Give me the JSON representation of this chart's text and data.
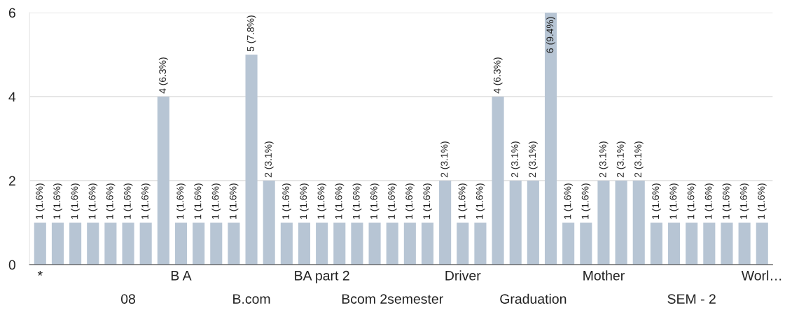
{
  "chart_data": {
    "type": "bar",
    "color": "#b7c5d4",
    "categories": [
      "*",
      null,
      null,
      null,
      null,
      "08",
      null,
      null,
      "B A",
      null,
      null,
      null,
      "B.com",
      null,
      null,
      null,
      "BA part 2",
      null,
      null,
      null,
      "Bcom 2semester",
      null,
      null,
      null,
      "Driver",
      null,
      null,
      null,
      "Graduation",
      null,
      null,
      null,
      "Mother",
      null,
      null,
      null,
      null,
      "SEM - 2",
      null,
      null,
      null,
      "Worl…"
    ],
    "values": [
      1,
      1,
      1,
      1,
      1,
      1,
      1,
      4,
      1,
      1,
      1,
      1,
      5,
      2,
      1,
      1,
      1,
      1,
      1,
      1,
      1,
      1,
      1,
      2,
      1,
      1,
      4,
      2,
      2,
      6,
      1,
      1,
      2,
      2,
      2,
      1,
      1,
      1,
      1,
      1,
      1,
      1
    ],
    "value_labels": [
      "1 (1.6%)",
      "1 (1.6%)",
      "1 (1.6%)",
      "1 (1.6%)",
      "1 (1.6%)",
      "1 (1.6%)",
      "1 (1.6%)",
      "4 (6.3%)",
      "1 (1.6%)",
      "1 (1.6%)",
      "1 (1.6%)",
      "1 (1.6%)",
      "5 (7.8%)",
      "2 (3.1%)",
      "1 (1.6%)",
      "1 (1.6%)",
      "1 (1.6%)",
      "1 (1.6%)",
      "1 (1.6%)",
      "1 (1.6%)",
      "1 (1.6%)",
      "1 (1.6%)",
      "1 (1.6%)",
      "2 (3.1%)",
      "1 (1.6%)",
      "1 (1.6%)",
      "4 (6.3%)",
      "2 (3.1%)",
      "2 (3.1%)",
      "6 (9.4%)",
      "1 (1.6%)",
      "1 (1.6%)",
      "2 (3.1%)",
      "2 (3.1%)",
      "2 (3.1%)",
      "1 (1.6%)",
      "1 (1.6%)",
      "1 (1.6%)",
      "1 (1.6%)",
      "1 (1.6%)",
      "1 (1.6%)",
      "1 (1.6%)"
    ],
    "ylim": [
      0,
      6
    ],
    "yticks": [
      0,
      2,
      4,
      6
    ],
    "grid": "y",
    "legend": false
  }
}
